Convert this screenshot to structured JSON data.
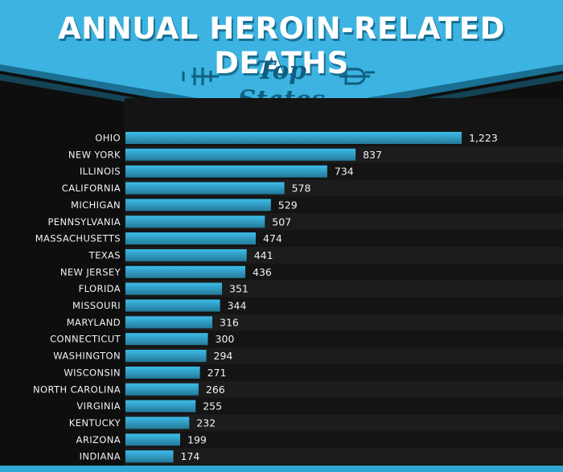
{
  "header": {
    "title": "ANNUAL HEROIN-RELATED DEATHS",
    "subtitle": "Top States"
  },
  "colors": {
    "banner": "#3cb3e0",
    "banner_dark": "#1a6f92",
    "bar_top": "#3dbce9",
    "bar_bottom": "#237a99",
    "background": "#0e0e0e",
    "row_alt": "#1c1c1c"
  },
  "chart_data": {
    "type": "bar",
    "orientation": "horizontal",
    "categories": [
      "OHIO",
      "NEW YORK",
      "ILLINOIS",
      "CALIFORNIA",
      "MICHIGAN",
      "PENNSYLVANIA",
      "MASSACHUSETTS",
      "TEXAS",
      "NEW JERSEY",
      "FLORIDA",
      "MISSOURI",
      "MARYLAND",
      "CONNECTICUT",
      "WASHINGTON",
      "WISCONSIN",
      "NORTH CAROLINA",
      "VIRGINIA",
      "KENTUCKY",
      "ARIZONA",
      "INDIANA"
    ],
    "values": [
      1223,
      837,
      734,
      578,
      529,
      507,
      474,
      441,
      436,
      351,
      344,
      316,
      300,
      294,
      271,
      266,
      255,
      232,
      199,
      174
    ],
    "value_labels": [
      "1,223",
      "837",
      "734",
      "578",
      "529",
      "507",
      "474",
      "441",
      "436",
      "351",
      "344",
      "316",
      "300",
      "294",
      "271",
      "266",
      "255",
      "232",
      "199",
      "174"
    ],
    "title": "ANNUAL HEROIN-RELATED DEATHS",
    "subtitle": "Top States",
    "xlabel": "",
    "ylabel": "",
    "grid": false,
    "legend": "none"
  }
}
